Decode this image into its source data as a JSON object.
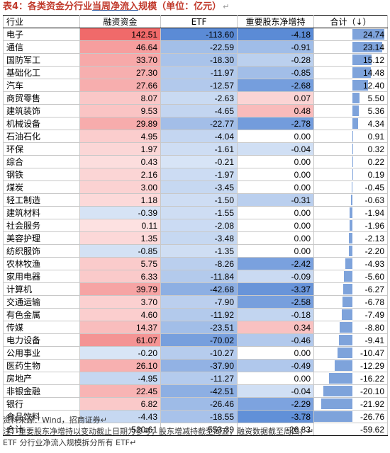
{
  "title": {
    "prefix": "表4：各类资金分行业",
    "underlined": "当周净流入",
    "suffix": "规模（单位：亿元）",
    "return_mark": "↵"
  },
  "table": {
    "headers": [
      "行业",
      "融资资金",
      "ETF",
      "重要股东净增持",
      "合计（↓）"
    ],
    "rows": [
      {
        "name": "电子",
        "values": [
          142.51,
          -113.6,
          -4.18,
          24.74
        ],
        "display": [
          "142.51",
          "-113.60",
          "-4.18",
          "24.74"
        ]
      },
      {
        "name": "通信",
        "values": [
          46.64,
          -22.59,
          -0.91,
          23.14
        ],
        "display": [
          "46.64",
          "-22.59",
          "-0.91",
          "23.14"
        ]
      },
      {
        "name": "国防军工",
        "values": [
          33.7,
          -18.3,
          -0.28,
          15.12
        ],
        "display": [
          "33.70",
          "-18.30",
          "-0.28",
          "15.12"
        ]
      },
      {
        "name": "基础化工",
        "values": [
          27.3,
          -11.97,
          -0.85,
          14.48
        ],
        "display": [
          "27.30",
          "-11.97",
          "-0.85",
          "14.48"
        ]
      },
      {
        "name": "汽车",
        "values": [
          27.66,
          -12.57,
          -2.68,
          12.4
        ],
        "display": [
          "27.66",
          "-12.57",
          "-2.68",
          "12.40"
        ]
      },
      {
        "name": "商贸零售",
        "values": [
          8.07,
          -2.63,
          0.07,
          5.5
        ],
        "display": [
          "8.07",
          "-2.63",
          "0.07",
          "5.50"
        ]
      },
      {
        "name": "建筑装饰",
        "values": [
          9.53,
          -4.65,
          0.48,
          5.36
        ],
        "display": [
          "9.53",
          "-4.65",
          "0.48",
          "5.36"
        ]
      },
      {
        "name": "机械设备",
        "values": [
          29.89,
          -22.77,
          -2.78,
          4.34
        ],
        "display": [
          "29.89",
          "-22.77",
          "-2.78",
          "4.34"
        ]
      },
      {
        "name": "石油石化",
        "values": [
          4.95,
          -4.04,
          0.0,
          0.91
        ],
        "display": [
          "4.95",
          "-4.04",
          "0.00",
          "0.91"
        ]
      },
      {
        "name": "环保",
        "values": [
          1.97,
          -1.61,
          -0.04,
          0.32
        ],
        "display": [
          "1.97",
          "-1.61",
          "-0.04",
          "0.32"
        ]
      },
      {
        "name": "综合",
        "values": [
          0.43,
          -0.21,
          0.0,
          0.22
        ],
        "display": [
          "0.43",
          "-0.21",
          "0.00",
          "0.22"
        ]
      },
      {
        "name": "钢铁",
        "values": [
          2.16,
          -1.97,
          0.0,
          0.19
        ],
        "display": [
          "2.16",
          "-1.97",
          "0.00",
          "0.19"
        ]
      },
      {
        "name": "煤炭",
        "values": [
          3.0,
          -3.45,
          0.0,
          -0.45
        ],
        "display": [
          "3.00",
          "-3.45",
          "0.00",
          "-0.45"
        ]
      },
      {
        "name": "轻工制造",
        "values": [
          1.18,
          -1.5,
          -0.31,
          -0.63
        ],
        "display": [
          "1.18",
          "-1.50",
          "-0.31",
          "-0.63"
        ]
      },
      {
        "name": "建筑材料",
        "values": [
          -0.39,
          -1.55,
          0.0,
          -1.94
        ],
        "display": [
          "-0.39",
          "-1.55",
          "0.00",
          "-1.94"
        ]
      },
      {
        "name": "社会服务",
        "values": [
          0.11,
          -2.08,
          0.0,
          -1.96
        ],
        "display": [
          "0.11",
          "-2.08",
          "0.00",
          "-1.96"
        ]
      },
      {
        "name": "美容护理",
        "values": [
          1.35,
          -3.48,
          0.0,
          -2.13
        ],
        "display": [
          "1.35",
          "-3.48",
          "0.00",
          "-2.13"
        ]
      },
      {
        "name": "纺织服饰",
        "values": [
          -0.85,
          -1.35,
          0.0,
          -2.2
        ],
        "display": [
          "-0.85",
          "-1.35",
          "0.00",
          "-2.20"
        ]
      },
      {
        "name": "农林牧渔",
        "values": [
          5.75,
          -8.26,
          -2.42,
          -4.93
        ],
        "display": [
          "5.75",
          "-8.26",
          "-2.42",
          "-4.93"
        ]
      },
      {
        "name": "家用电器",
        "values": [
          6.33,
          -11.84,
          -0.09,
          -5.6
        ],
        "display": [
          "6.33",
          "-11.84",
          "-0.09",
          "-5.60"
        ]
      },
      {
        "name": "计算机",
        "values": [
          39.79,
          -42.68,
          -3.37,
          -6.27
        ],
        "display": [
          "39.79",
          "-42.68",
          "-3.37",
          "-6.27"
        ]
      },
      {
        "name": "交通运输",
        "values": [
          3.7,
          -7.9,
          -2.58,
          -6.78
        ],
        "display": [
          "3.70",
          "-7.90",
          "-2.58",
          "-6.78"
        ]
      },
      {
        "name": "有色金属",
        "values": [
          4.6,
          -11.92,
          -0.18,
          -7.49
        ],
        "display": [
          "4.60",
          "-11.92",
          "-0.18",
          "-7.49"
        ]
      },
      {
        "name": "传媒",
        "values": [
          14.37,
          -23.51,
          0.34,
          -8.8
        ],
        "display": [
          "14.37",
          "-23.51",
          "0.34",
          "-8.80"
        ]
      },
      {
        "name": "电力设备",
        "values": [
          61.07,
          -70.02,
          -0.46,
          -9.41
        ],
        "display": [
          "61.07",
          "-70.02",
          "-0.46",
          "-9.41"
        ]
      },
      {
        "name": "公用事业",
        "values": [
          -0.2,
          -10.27,
          0.0,
          -10.47
        ],
        "display": [
          "-0.20",
          "-10.27",
          "0.00",
          "-10.47"
        ]
      },
      {
        "name": "医药生物",
        "values": [
          26.1,
          -37.9,
          -0.49,
          -12.29
        ],
        "display": [
          "26.10",
          "-37.90",
          "-0.49",
          "-12.29"
        ]
      },
      {
        "name": "房地产",
        "values": [
          -4.95,
          -11.27,
          0.0,
          -16.22
        ],
        "display": [
          "-4.95",
          "-11.27",
          "0.00",
          "-16.22"
        ]
      },
      {
        "name": "非银金融",
        "values": [
          22.45,
          -42.51,
          -0.04,
          -20.1
        ],
        "display": [
          "22.45",
          "-42.51",
          "-0.04",
          "-20.10"
        ]
      },
      {
        "name": "银行",
        "values": [
          6.82,
          -26.46,
          -2.29,
          -21.92
        ],
        "display": [
          "6.82",
          "-26.46",
          "-2.29",
          "-21.92"
        ]
      },
      {
        "name": "食品饮料",
        "values": [
          -4.43,
          -18.55,
          -3.78,
          -26.76
        ],
        "display": [
          "-4.43",
          "-18.55",
          "-3.78",
          "-26.76"
        ]
      }
    ],
    "total": {
      "name": "合计",
      "display": [
        "520.61",
        "-553.39",
        "-26.83",
        "-59.62"
      ]
    }
  },
  "notes": [
    "资料来源：Wind，招商证券↵",
    "注：重要股东净增持以变动截止日期为参考；股东增减持截至周五；融资数据截至周四；↵",
    "ETF 分行业净流入规模拆分所有 ETF↵"
  ],
  "colors": {
    "title": "#c0392b",
    "positive_strong": "#f06a6a",
    "positive_weak": "#fde4e4",
    "negative_strong": "#5b8bd6",
    "negative_weak": "#dde8f7",
    "bar_fill": "#7ea3db"
  }
}
